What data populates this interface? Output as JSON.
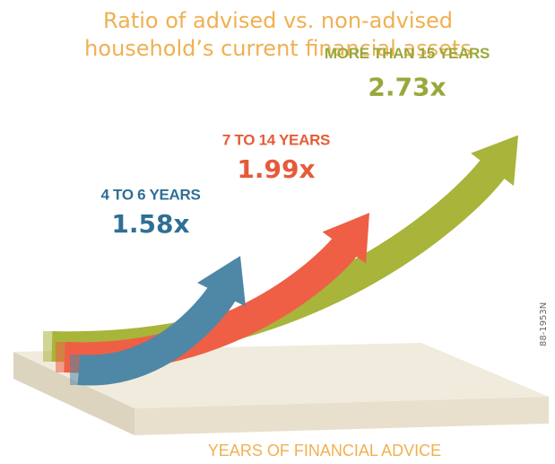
{
  "chart_data": {
    "type": "arrow",
    "title": "Ratio of advised vs. non-advised",
    "subtitle": "household’s current financial assets",
    "categories": [
      "4 TO 6 YEARS",
      "7 TO 14 YEARS",
      "MORE THAN 15 YEARS"
    ],
    "values": [
      1.58,
      1.99,
      2.73
    ],
    "value_labels": [
      "1.58x",
      "1.99x",
      "2.73x"
    ],
    "colors": [
      "#4f87a6",
      "#ef5f45",
      "#a8b43a"
    ],
    "label_colors": [
      "#2f6f95",
      "#e55b3a",
      "#9aa83b"
    ],
    "x_label": "YEARS OF FINANCIAL ADVICE",
    "annotation": "88-1953N"
  }
}
